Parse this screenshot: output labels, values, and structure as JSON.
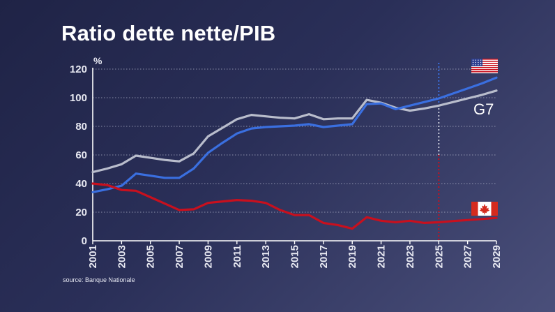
{
  "page": {
    "title": "Ratio dette nette/PIB",
    "source": "source: Banque Nationale"
  },
  "chart_data": {
    "type": "line",
    "title": "Ratio dette nette/PIB",
    "ylabel": "%",
    "xlim": [
      2001,
      2029
    ],
    "ylim": [
      0,
      125
    ],
    "yticks": [
      0,
      20,
      40,
      60,
      80,
      100,
      120
    ],
    "xticks": [
      2001,
      2003,
      2005,
      2007,
      2009,
      2011,
      2013,
      2015,
      2017,
      2019,
      2021,
      2023,
      2025,
      2027,
      2029
    ],
    "grid": true,
    "forecast_start": 2025,
    "series": [
      {
        "name": "G7",
        "color": "#b9bdcc",
        "points": [
          [
            2001,
            48
          ],
          [
            2002,
            50.5
          ],
          [
            2003,
            53.5
          ],
          [
            2004,
            59.5
          ],
          [
            2005,
            58
          ],
          [
            2006,
            56.5
          ],
          [
            2007,
            55.5
          ],
          [
            2008,
            61
          ],
          [
            2009,
            73
          ],
          [
            2010,
            79
          ],
          [
            2011,
            85
          ],
          [
            2012,
            88
          ],
          [
            2013,
            87
          ],
          [
            2014,
            86
          ],
          [
            2015,
            85.5
          ],
          [
            2016,
            88.5
          ],
          [
            2017,
            85
          ],
          [
            2018,
            85.5
          ],
          [
            2019,
            85.5
          ],
          [
            2020,
            98.5
          ],
          [
            2021,
            96.5
          ],
          [
            2022,
            93
          ],
          [
            2023,
            91
          ],
          [
            2024,
            92.5
          ],
          [
            2025,
            94.5
          ],
          [
            2026,
            97
          ],
          [
            2027,
            99.5
          ],
          [
            2028,
            102
          ],
          [
            2029,
            105
          ]
        ]
      },
      {
        "name": "États-Unis",
        "color": "#3a6fe0",
        "flag": "us-flag-icon",
        "points": [
          [
            2001,
            34
          ],
          [
            2002,
            36
          ],
          [
            2003,
            38.5
          ],
          [
            2004,
            47
          ],
          [
            2005,
            45.5
          ],
          [
            2006,
            44
          ],
          [
            2007,
            44
          ],
          [
            2008,
            50.5
          ],
          [
            2009,
            61.5
          ],
          [
            2010,
            68.5
          ],
          [
            2011,
            75
          ],
          [
            2012,
            78.5
          ],
          [
            2013,
            79.5
          ],
          [
            2014,
            80
          ],
          [
            2015,
            80.5
          ],
          [
            2016,
            81.5
          ],
          [
            2017,
            79.5
          ],
          [
            2018,
            80.5
          ],
          [
            2019,
            81.5
          ],
          [
            2020,
            95.5
          ],
          [
            2021,
            96
          ],
          [
            2022,
            92
          ],
          [
            2023,
            94.5
          ],
          [
            2024,
            97
          ],
          [
            2025,
            99.5
          ],
          [
            2026,
            103
          ],
          [
            2027,
            106.5
          ],
          [
            2028,
            110
          ],
          [
            2029,
            114
          ]
        ]
      },
      {
        "name": "Canada",
        "color": "#c8101e",
        "flag": "canada-flag-icon",
        "points": [
          [
            2001,
            40
          ],
          [
            2002,
            39
          ],
          [
            2003,
            35.5
          ],
          [
            2004,
            35
          ],
          [
            2005,
            30.5
          ],
          [
            2006,
            26
          ],
          [
            2007,
            21.5
          ],
          [
            2008,
            22
          ],
          [
            2009,
            26.5
          ],
          [
            2010,
            27.5
          ],
          [
            2011,
            28.5
          ],
          [
            2012,
            28
          ],
          [
            2013,
            26.5
          ],
          [
            2014,
            21.5
          ],
          [
            2015,
            18
          ],
          [
            2016,
            18
          ],
          [
            2017,
            12.5
          ],
          [
            2018,
            11
          ],
          [
            2019,
            8.5
          ],
          [
            2020,
            16.5
          ],
          [
            2021,
            14
          ],
          [
            2022,
            13
          ],
          [
            2023,
            14
          ],
          [
            2024,
            12.5
          ],
          [
            2025,
            13
          ],
          [
            2026,
            13.8
          ],
          [
            2027,
            14.5
          ],
          [
            2028,
            15.2
          ],
          [
            2029,
            16
          ]
        ]
      }
    ],
    "g7_label": "G7"
  }
}
